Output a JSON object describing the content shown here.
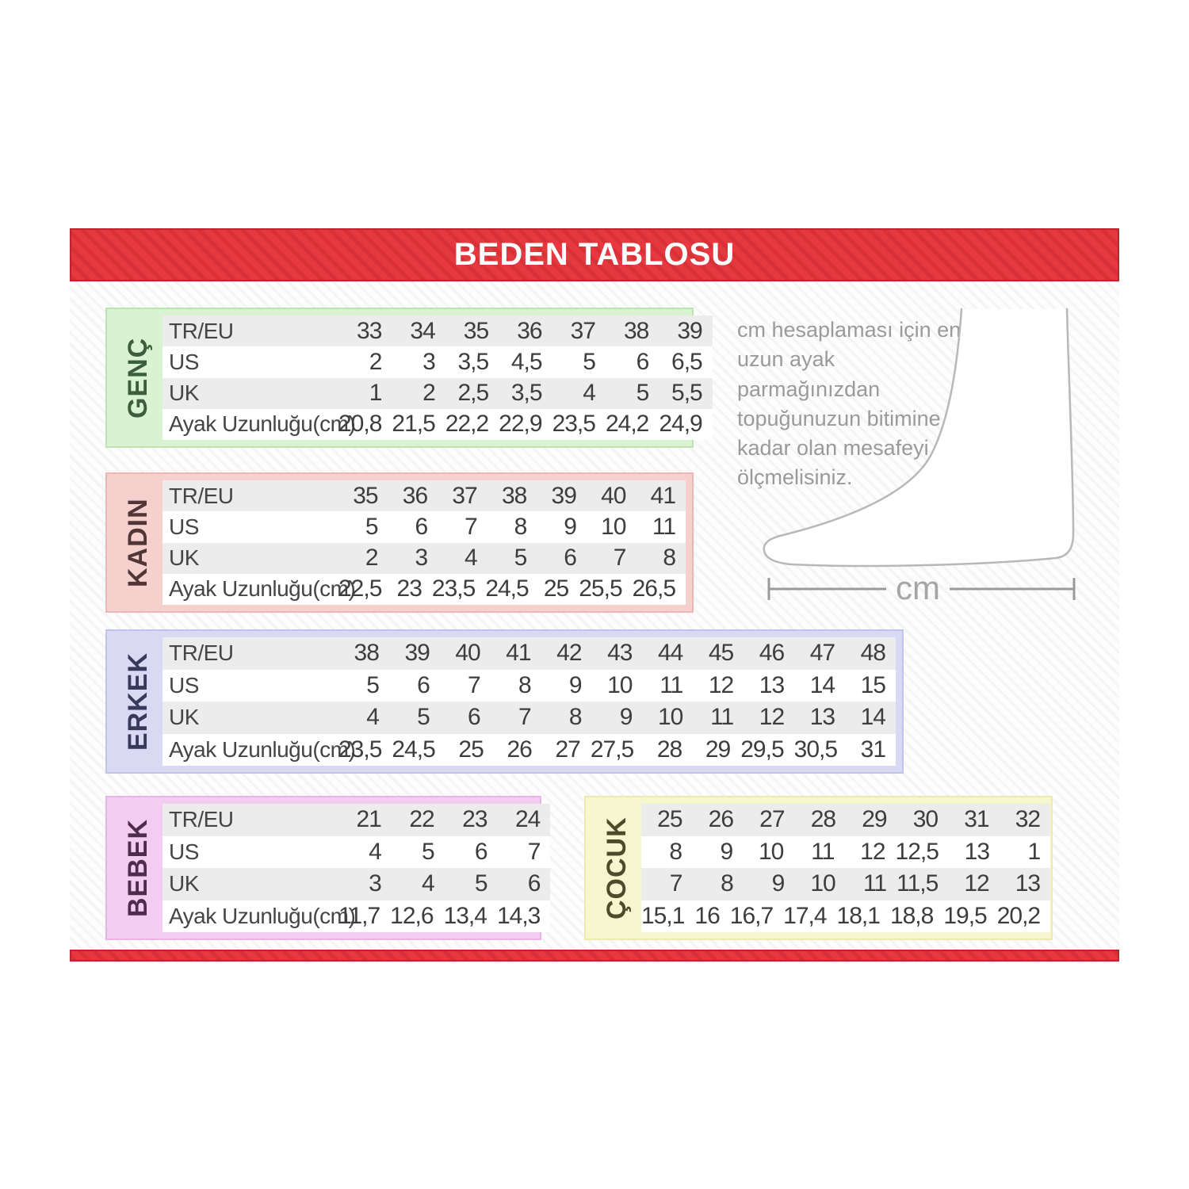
{
  "header": {
    "title": "BEDEN TABLOSU"
  },
  "colors": {
    "bar_red": "#e6383f",
    "bar_red_border": "#c2222b",
    "row_shade": "#ececec"
  },
  "note": {
    "text": "cm hesaplaması için en uzun ayak parmağınızdan topuğunuzun bitimine kadar olan mesafeyi ölçmelisiniz."
  },
  "foot_diagram": {
    "unit_label": "cm"
  },
  "tables": [
    {
      "id": "genc",
      "label": "GENÇ",
      "bg": "#d9f2d2",
      "border": "#bde3b2",
      "text_color": "#3d5e3d",
      "row_labels": [
        "TR/EU",
        "US",
        "UK",
        "Ayak Uzunluğu(cm)"
      ],
      "rows": [
        [
          "33",
          "34",
          "35",
          "36",
          "37",
          "38",
          "39"
        ],
        [
          "2",
          "3",
          "3,5",
          "4,5",
          "5",
          "6",
          "6,5"
        ],
        [
          "1",
          "2",
          "2,5",
          "3,5",
          "4",
          "5",
          "5,5"
        ],
        [
          "20,8",
          "21,5",
          "22,2",
          "22,9",
          "23,5",
          "24,2",
          "24,9"
        ]
      ]
    },
    {
      "id": "kadin",
      "label": "KADIN",
      "bg": "#f6d0cd",
      "border": "#efb7b3",
      "text_color": "#513638",
      "row_labels": [
        "TR/EU",
        "US",
        "UK",
        "Ayak Uzunluğu(cm)"
      ],
      "rows": [
        [
          "35",
          "36",
          "37",
          "38",
          "39",
          "40",
          "41"
        ],
        [
          "5",
          "6",
          "7",
          "8",
          "9",
          "10",
          "11"
        ],
        [
          "2",
          "3",
          "4",
          "5",
          "6",
          "7",
          "8"
        ],
        [
          "22,5",
          "23",
          "23,5",
          "24,5",
          "25",
          "25,5",
          "26,5"
        ]
      ]
    },
    {
      "id": "erkek",
      "label": "ERKEK",
      "bg": "#d9d9f3",
      "border": "#c2c2ea",
      "text_color": "#39395c",
      "row_labels": [
        "TR/EU",
        "US",
        "UK",
        "Ayak Uzunluğu(cm)"
      ],
      "rows": [
        [
          "38",
          "39",
          "40",
          "41",
          "42",
          "43",
          "44",
          "45",
          "46",
          "47",
          "48"
        ],
        [
          "5",
          "6",
          "7",
          "8",
          "9",
          "10",
          "11",
          "12",
          "13",
          "14",
          "15"
        ],
        [
          "4",
          "5",
          "6",
          "7",
          "8",
          "9",
          "10",
          "11",
          "12",
          "13",
          "14"
        ],
        [
          "23,5",
          "24,5",
          "25",
          "26",
          "27",
          "27,5",
          "28",
          "29",
          "29,5",
          "30,5",
          "31"
        ]
      ]
    },
    {
      "id": "bebek",
      "label": "BEBEK",
      "bg": "#f3ccf1",
      "border": "#e8b4e5",
      "text_color": "#4d2c4e",
      "row_labels": [
        "TR/EU",
        "US",
        "UK",
        "Ayak Uzunluğu(cm)"
      ],
      "rows": [
        [
          "21",
          "22",
          "23",
          "24"
        ],
        [
          "4",
          "5",
          "6",
          "7"
        ],
        [
          "3",
          "4",
          "5",
          "6"
        ],
        [
          "11,7",
          "12,6",
          "13,4",
          "14,3"
        ]
      ]
    },
    {
      "id": "cocuk",
      "label": "ÇOCUK",
      "bg": "#f7f7cf",
      "border": "#ebebad",
      "text_color": "#4c4c2c",
      "row_labels": null,
      "rows": [
        [
          "25",
          "26",
          "27",
          "28",
          "29",
          "30",
          "31",
          "32"
        ],
        [
          "8",
          "9",
          "10",
          "11",
          "12",
          "12,5",
          "13",
          "1"
        ],
        [
          "7",
          "8",
          "9",
          "10",
          "11",
          "11,5",
          "12",
          "13"
        ],
        [
          "15,1",
          "16",
          "16,7",
          "17,4",
          "18,1",
          "18,8",
          "19,5",
          "20,2"
        ]
      ]
    }
  ]
}
